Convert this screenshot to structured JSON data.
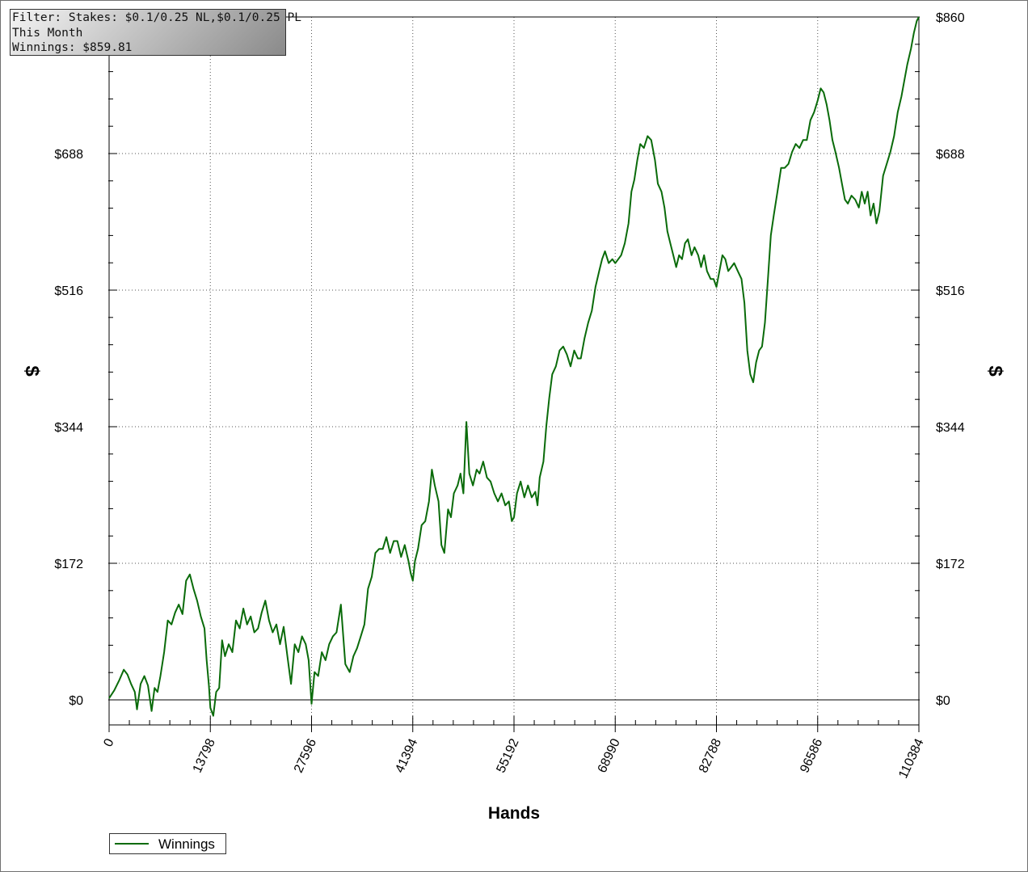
{
  "filter_box": {
    "lines": [
      "Filter: Stakes: $0.1/0.25 NL,$0.1/0.25 PL",
      "This Month",
      "Winnings: $859.81"
    ]
  },
  "legend": {
    "label": "Winnings"
  },
  "colors": {
    "series": "#0a6b0a",
    "grid": "#555555",
    "axis": "#000000",
    "zero_line": "#000000"
  },
  "chart_data": {
    "type": "line",
    "title": "",
    "xlabel": "Hands",
    "ylabel": "$",
    "xlim": [
      0,
      110384
    ],
    "ylim": [
      -30,
      860
    ],
    "x_ticks": [
      0,
      13798,
      27596,
      41394,
      55192,
      68990,
      82788,
      96586,
      110384
    ],
    "x_tick_labels": [
      "0",
      "13798",
      "27596",
      "41394",
      "55192",
      "68990",
      "82788",
      "96586",
      "110384"
    ],
    "y_ticks": [
      0,
      172,
      344,
      516,
      688,
      860
    ],
    "y_tick_labels": [
      "$0",
      "$172",
      "$344",
      "$516",
      "$688",
      "$860"
    ],
    "grid": true,
    "legend_position": "bottom-left",
    "series": [
      {
        "name": "Winnings",
        "color": "#0a6b0a",
        "points": [
          [
            0,
            2
          ],
          [
            700,
            12
          ],
          [
            1400,
            25
          ],
          [
            2000,
            38
          ],
          [
            2500,
            32
          ],
          [
            3000,
            20
          ],
          [
            3500,
            10
          ],
          [
            3800,
            -12
          ],
          [
            4300,
            20
          ],
          [
            4800,
            30
          ],
          [
            5300,
            18
          ],
          [
            5800,
            -14
          ],
          [
            6200,
            15
          ],
          [
            6600,
            10
          ],
          [
            7000,
            30
          ],
          [
            7500,
            60
          ],
          [
            8000,
            100
          ],
          [
            8500,
            95
          ],
          [
            9000,
            110
          ],
          [
            9500,
            120
          ],
          [
            10000,
            108
          ],
          [
            10500,
            150
          ],
          [
            11000,
            158
          ],
          [
            11500,
            140
          ],
          [
            12000,
            125
          ],
          [
            12500,
            105
          ],
          [
            13000,
            90
          ],
          [
            13300,
            50
          ],
          [
            13600,
            18
          ],
          [
            13798,
            -10
          ],
          [
            14200,
            -20
          ],
          [
            14600,
            10
          ],
          [
            15000,
            15
          ],
          [
            15400,
            75
          ],
          [
            15800,
            55
          ],
          [
            16300,
            70
          ],
          [
            16800,
            60
          ],
          [
            17300,
            100
          ],
          [
            17800,
            90
          ],
          [
            18300,
            115
          ],
          [
            18800,
            95
          ],
          [
            19300,
            105
          ],
          [
            19800,
            85
          ],
          [
            20300,
            90
          ],
          [
            20800,
            110
          ],
          [
            21300,
            125
          ],
          [
            21800,
            100
          ],
          [
            22300,
            85
          ],
          [
            22800,
            95
          ],
          [
            23300,
            70
          ],
          [
            23800,
            92
          ],
          [
            24300,
            55
          ],
          [
            24800,
            20
          ],
          [
            25300,
            70
          ],
          [
            25800,
            60
          ],
          [
            26300,
            80
          ],
          [
            26800,
            70
          ],
          [
            27200,
            50
          ],
          [
            27596,
            -5
          ],
          [
            28000,
            35
          ],
          [
            28500,
            30
          ],
          [
            29000,
            60
          ],
          [
            29500,
            50
          ],
          [
            30000,
            70
          ],
          [
            30500,
            80
          ],
          [
            31000,
            85
          ],
          [
            31600,
            120
          ],
          [
            32200,
            45
          ],
          [
            32800,
            35
          ],
          [
            33300,
            55
          ],
          [
            33800,
            65
          ],
          [
            34300,
            80
          ],
          [
            34800,
            95
          ],
          [
            35300,
            140
          ],
          [
            35800,
            155
          ],
          [
            36300,
            185
          ],
          [
            36800,
            190
          ],
          [
            37300,
            190
          ],
          [
            37800,
            205
          ],
          [
            38300,
            185
          ],
          [
            38800,
            200
          ],
          [
            39300,
            200
          ],
          [
            39800,
            180
          ],
          [
            40300,
            195
          ],
          [
            40800,
            175
          ],
          [
            41100,
            160
          ],
          [
            41394,
            150
          ],
          [
            41700,
            175
          ],
          [
            42100,
            190
          ],
          [
            42600,
            220
          ],
          [
            43100,
            225
          ],
          [
            43600,
            250
          ],
          [
            44000,
            290
          ],
          [
            44400,
            270
          ],
          [
            44900,
            250
          ],
          [
            45300,
            195
          ],
          [
            45700,
            185
          ],
          [
            46200,
            240
          ],
          [
            46600,
            230
          ],
          [
            47000,
            260
          ],
          [
            47500,
            270
          ],
          [
            47900,
            285
          ],
          [
            48300,
            260
          ],
          [
            48700,
            350
          ],
          [
            49100,
            285
          ],
          [
            49600,
            270
          ],
          [
            50100,
            290
          ],
          [
            50500,
            285
          ],
          [
            51000,
            300
          ],
          [
            51500,
            280
          ],
          [
            52000,
            275
          ],
          [
            52500,
            260
          ],
          [
            53000,
            250
          ],
          [
            53500,
            260
          ],
          [
            54000,
            245
          ],
          [
            54500,
            250
          ],
          [
            54900,
            225
          ],
          [
            55192,
            230
          ],
          [
            55600,
            260
          ],
          [
            56100,
            275
          ],
          [
            56600,
            255
          ],
          [
            57100,
            270
          ],
          [
            57600,
            255
          ],
          [
            58100,
            262
          ],
          [
            58400,
            245
          ],
          [
            58700,
            280
          ],
          [
            59200,
            300
          ],
          [
            59600,
            345
          ],
          [
            60000,
            380
          ],
          [
            60400,
            410
          ],
          [
            60900,
            420
          ],
          [
            61400,
            440
          ],
          [
            61900,
            445
          ],
          [
            62400,
            435
          ],
          [
            62900,
            420
          ],
          [
            63400,
            440
          ],
          [
            63900,
            430
          ],
          [
            64300,
            430
          ],
          [
            64800,
            455
          ],
          [
            65300,
            475
          ],
          [
            65800,
            490
          ],
          [
            66300,
            520
          ],
          [
            66800,
            540
          ],
          [
            67200,
            555
          ],
          [
            67600,
            565
          ],
          [
            68100,
            550
          ],
          [
            68600,
            555
          ],
          [
            68990,
            550
          ],
          [
            69400,
            555
          ],
          [
            69800,
            560
          ],
          [
            70300,
            575
          ],
          [
            70800,
            600
          ],
          [
            71200,
            640
          ],
          [
            71600,
            655
          ],
          [
            72000,
            680
          ],
          [
            72400,
            700
          ],
          [
            72900,
            695
          ],
          [
            73400,
            710
          ],
          [
            73900,
            705
          ],
          [
            74400,
            680
          ],
          [
            74800,
            650
          ],
          [
            75300,
            640
          ],
          [
            75700,
            620
          ],
          [
            76100,
            590
          ],
          [
            76500,
            575
          ],
          [
            76900,
            560
          ],
          [
            77300,
            545
          ],
          [
            77700,
            560
          ],
          [
            78100,
            555
          ],
          [
            78500,
            575
          ],
          [
            78900,
            580
          ],
          [
            79400,
            560
          ],
          [
            79800,
            570
          ],
          [
            80300,
            560
          ],
          [
            80700,
            545
          ],
          [
            81100,
            560
          ],
          [
            81500,
            540
          ],
          [
            82000,
            530
          ],
          [
            82400,
            530
          ],
          [
            82788,
            520
          ],
          [
            83200,
            540
          ],
          [
            83600,
            560
          ],
          [
            84000,
            555
          ],
          [
            84400,
            540
          ],
          [
            84800,
            545
          ],
          [
            85200,
            550
          ],
          [
            85700,
            540
          ],
          [
            86200,
            530
          ],
          [
            86600,
            500
          ],
          [
            87000,
            440
          ],
          [
            87400,
            410
          ],
          [
            87800,
            400
          ],
          [
            88200,
            425
          ],
          [
            88600,
            440
          ],
          [
            89000,
            445
          ],
          [
            89400,
            475
          ],
          [
            89800,
            530
          ],
          [
            90200,
            585
          ],
          [
            90600,
            610
          ],
          [
            91100,
            640
          ],
          [
            91600,
            670
          ],
          [
            92100,
            670
          ],
          [
            92600,
            675
          ],
          [
            93100,
            690
          ],
          [
            93600,
            700
          ],
          [
            94100,
            695
          ],
          [
            94600,
            705
          ],
          [
            95100,
            705
          ],
          [
            95600,
            730
          ],
          [
            96100,
            740
          ],
          [
            96586,
            755
          ],
          [
            97000,
            770
          ],
          [
            97400,
            765
          ],
          [
            97800,
            750
          ],
          [
            98200,
            730
          ],
          [
            98600,
            705
          ],
          [
            99000,
            690
          ],
          [
            99500,
            670
          ],
          [
            99900,
            650
          ],
          [
            100300,
            630
          ],
          [
            100700,
            625
          ],
          [
            101200,
            635
          ],
          [
            101700,
            630
          ],
          [
            102200,
            620
          ],
          [
            102600,
            640
          ],
          [
            103000,
            625
          ],
          [
            103400,
            640
          ],
          [
            103800,
            610
          ],
          [
            104200,
            625
          ],
          [
            104600,
            600
          ],
          [
            105000,
            615
          ],
          [
            105500,
            660
          ],
          [
            106000,
            675
          ],
          [
            106500,
            690
          ],
          [
            107000,
            710
          ],
          [
            107500,
            740
          ],
          [
            108000,
            760
          ],
          [
            108400,
            780
          ],
          [
            108800,
            800
          ],
          [
            109300,
            820
          ],
          [
            109700,
            840
          ],
          [
            110100,
            855
          ],
          [
            110384,
            860
          ]
        ]
      }
    ]
  }
}
